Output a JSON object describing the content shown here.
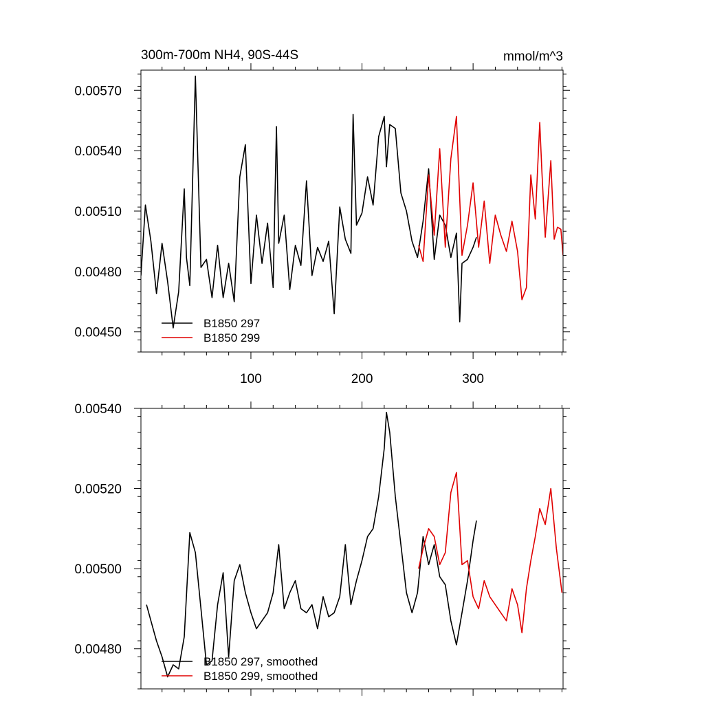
{
  "chart_data": [
    {
      "type": "line",
      "title": "300m-700m NH4, 90S-44S",
      "units": "mmol/m^3",
      "xlabel": "",
      "ylabel": "",
      "xlim": [
        1,
        381
      ],
      "ylim": [
        0.0044,
        0.0058
      ],
      "x_ticks": [
        100,
        200,
        300
      ],
      "x_tick_labels": [
        "100",
        "200",
        "300"
      ],
      "y_ticks": [
        0.0045,
        0.0048,
        0.0051,
        0.0054,
        0.0057
      ],
      "y_tick_labels": [
        "0.00450",
        "0.00480",
        "0.00510",
        "0.00540",
        "0.00570"
      ],
      "grid": false,
      "legend_position": "bottom-left",
      "series": [
        {
          "name": "B1850 297",
          "color": "#000000",
          "x": [
            1,
            5,
            10,
            15,
            20,
            25,
            30,
            35,
            40,
            42,
            45,
            50,
            55,
            60,
            65,
            70,
            75,
            80,
            85,
            90,
            95,
            100,
            105,
            110,
            115,
            120,
            123,
            125,
            130,
            135,
            140,
            145,
            150,
            155,
            160,
            165,
            170,
            175,
            180,
            185,
            190,
            192,
            195,
            200,
            205,
            210,
            215,
            220,
            222,
            225,
            230,
            235,
            240,
            245,
            250,
            255,
            260,
            265,
            270,
            275,
            280,
            285,
            288,
            290,
            295,
            300,
            303
          ],
          "values": [
            0.00478,
            0.00513,
            0.00495,
            0.00469,
            0.00494,
            0.00475,
            0.00452,
            0.0047,
            0.00521,
            0.00487,
            0.00473,
            0.00577,
            0.00482,
            0.00486,
            0.00467,
            0.00493,
            0.00467,
            0.00484,
            0.00465,
            0.00527,
            0.00543,
            0.00474,
            0.00508,
            0.00484,
            0.00504,
            0.00472,
            0.00552,
            0.00494,
            0.00508,
            0.00471,
            0.00493,
            0.00483,
            0.00525,
            0.00478,
            0.00492,
            0.00485,
            0.00495,
            0.00459,
            0.00512,
            0.00496,
            0.00489,
            0.00558,
            0.00503,
            0.00509,
            0.00527,
            0.00513,
            0.00547,
            0.00557,
            0.00532,
            0.00553,
            0.00551,
            0.00519,
            0.0051,
            0.00495,
            0.00487,
            0.00505,
            0.00531,
            0.00486,
            0.00508,
            0.00503,
            0.00487,
            0.00499,
            0.00455,
            0.00484,
            0.00486,
            0.00492,
            0.00497
          ]
        },
        {
          "name": "B1850 299",
          "color": "#e00000",
          "x": [
            251,
            255,
            260,
            265,
            270,
            275,
            280,
            285,
            290,
            295,
            300,
            305,
            310,
            315,
            320,
            325,
            330,
            335,
            340,
            344,
            348,
            352,
            356,
            360,
            362,
            365,
            370,
            373,
            376,
            379,
            381
          ],
          "values": [
            0.00493,
            0.00485,
            0.00528,
            0.00498,
            0.00541,
            0.00492,
            0.00536,
            0.00557,
            0.00488,
            0.00503,
            0.00524,
            0.00492,
            0.00515,
            0.00484,
            0.00508,
            0.00498,
            0.0049,
            0.00505,
            0.0049,
            0.00466,
            0.00472,
            0.00528,
            0.00506,
            0.00554,
            0.00529,
            0.00497,
            0.00535,
            0.00496,
            0.00502,
            0.00501,
            0.00488
          ]
        }
      ]
    },
    {
      "type": "line",
      "title": "",
      "xlabel": "",
      "ylabel": "",
      "xlim": [
        1,
        381
      ],
      "ylim": [
        0.0047,
        0.0054
      ],
      "y_ticks": [
        0.0048,
        0.005,
        0.0052,
        0.0054
      ],
      "y_tick_labels": [
        "0.00480",
        "0.00500",
        "0.00520",
        "0.00540"
      ],
      "grid": false,
      "legend_position": "bottom-left",
      "series": [
        {
          "name": "B1850 297, smoothed",
          "color": "#000000",
          "x": [
            6,
            10,
            15,
            20,
            25,
            30,
            35,
            40,
            45,
            50,
            55,
            60,
            65,
            70,
            75,
            80,
            85,
            90,
            95,
            100,
            105,
            110,
            115,
            120,
            125,
            130,
            135,
            140,
            145,
            150,
            155,
            160,
            165,
            170,
            175,
            180,
            185,
            190,
            195,
            200,
            205,
            210,
            215,
            220,
            222,
            225,
            230,
            235,
            240,
            245,
            250,
            255,
            260,
            265,
            270,
            275,
            280,
            285,
            290,
            295,
            300,
            303
          ],
          "values": [
            0.00491,
            0.00487,
            0.00482,
            0.00478,
            0.00473,
            0.00476,
            0.00475,
            0.00483,
            0.00509,
            0.00504,
            0.0049,
            0.00476,
            0.00477,
            0.00491,
            0.00499,
            0.00478,
            0.00497,
            0.00501,
            0.00494,
            0.00489,
            0.00485,
            0.00487,
            0.00489,
            0.00494,
            0.00506,
            0.0049,
            0.00494,
            0.00497,
            0.0049,
            0.00489,
            0.00491,
            0.00485,
            0.00493,
            0.00488,
            0.00489,
            0.00493,
            0.00506,
            0.00491,
            0.00497,
            0.00502,
            0.00508,
            0.0051,
            0.00518,
            0.0053,
            0.00539,
            0.00534,
            0.00518,
            0.00506,
            0.00494,
            0.00489,
            0.00494,
            0.00508,
            0.00501,
            0.00506,
            0.00498,
            0.00496,
            0.00487,
            0.00481,
            0.00489,
            0.00497,
            0.00507,
            0.00512
          ]
        },
        {
          "name": "B1850 299, smoothed",
          "color": "#e00000",
          "x": [
            251,
            255,
            260,
            265,
            270,
            275,
            280,
            285,
            290,
            295,
            300,
            305,
            310,
            315,
            320,
            325,
            330,
            335,
            340,
            344,
            348,
            352,
            356,
            360,
            365,
            370,
            375,
            380
          ],
          "values": [
            0.005,
            0.00505,
            0.0051,
            0.00508,
            0.00501,
            0.00504,
            0.00519,
            0.00524,
            0.00501,
            0.00502,
            0.00493,
            0.0049,
            0.00497,
            0.00493,
            0.00491,
            0.00489,
            0.00487,
            0.00495,
            0.00491,
            0.00484,
            0.00495,
            0.00502,
            0.00508,
            0.00515,
            0.00511,
            0.0052,
            0.00505,
            0.00494
          ]
        }
      ]
    }
  ]
}
